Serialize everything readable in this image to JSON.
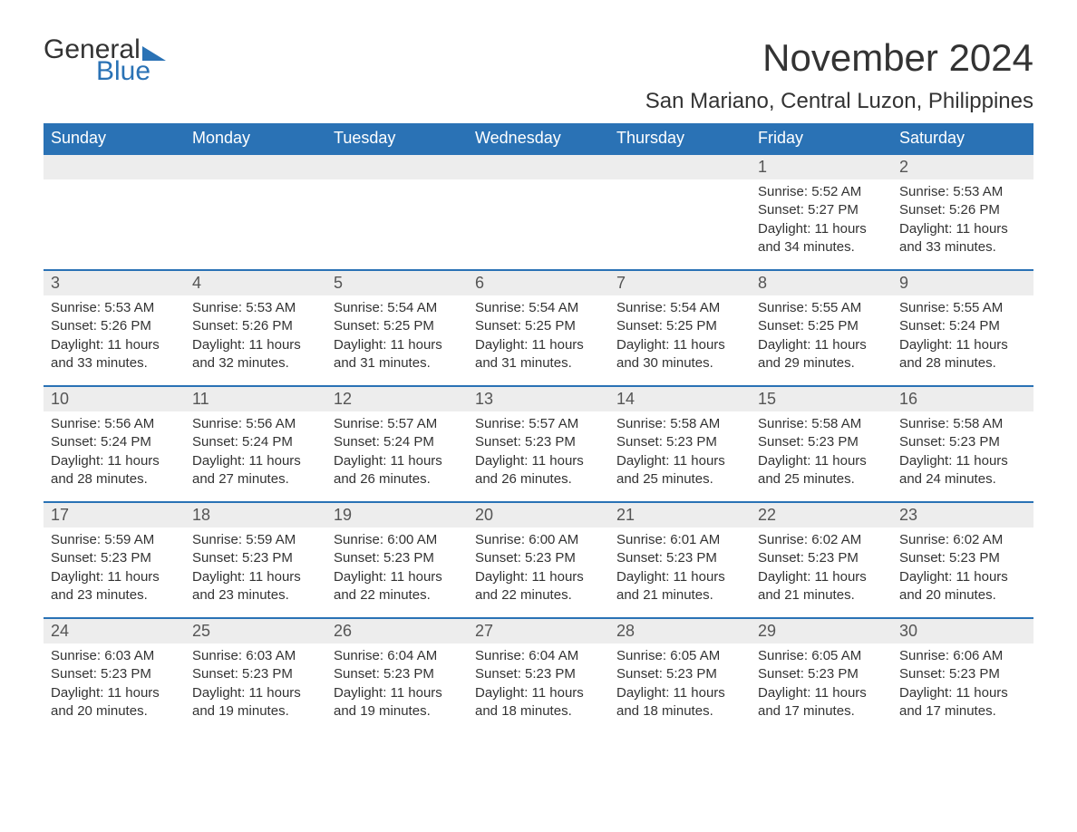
{
  "logo": {
    "text1": "General",
    "text2": "Blue"
  },
  "title": "November 2024",
  "location": "San Mariano, Central Luzon, Philippines",
  "colors": {
    "header_bg": "#2a72b5",
    "header_text": "#ffffff",
    "daynum_bg": "#ededed",
    "daynum_border": "#2a72b5",
    "body_bg": "#ffffff",
    "text": "#333333"
  },
  "typography": {
    "title_fontsize": 42,
    "location_fontsize": 24,
    "header_fontsize": 18,
    "daynum_fontsize": 18,
    "body_fontsize": 15
  },
  "weekdays": [
    "Sunday",
    "Monday",
    "Tuesday",
    "Wednesday",
    "Thursday",
    "Friday",
    "Saturday"
  ],
  "weeks": [
    [
      {
        "empty": true
      },
      {
        "empty": true
      },
      {
        "empty": true
      },
      {
        "empty": true
      },
      {
        "empty": true
      },
      {
        "day": "1",
        "sunrise": "Sunrise: 5:52 AM",
        "sunset": "Sunset: 5:27 PM",
        "daylight": "Daylight: 11 hours and 34 minutes."
      },
      {
        "day": "2",
        "sunrise": "Sunrise: 5:53 AM",
        "sunset": "Sunset: 5:26 PM",
        "daylight": "Daylight: 11 hours and 33 minutes."
      }
    ],
    [
      {
        "day": "3",
        "sunrise": "Sunrise: 5:53 AM",
        "sunset": "Sunset: 5:26 PM",
        "daylight": "Daylight: 11 hours and 33 minutes."
      },
      {
        "day": "4",
        "sunrise": "Sunrise: 5:53 AM",
        "sunset": "Sunset: 5:26 PM",
        "daylight": "Daylight: 11 hours and 32 minutes."
      },
      {
        "day": "5",
        "sunrise": "Sunrise: 5:54 AM",
        "sunset": "Sunset: 5:25 PM",
        "daylight": "Daylight: 11 hours and 31 minutes."
      },
      {
        "day": "6",
        "sunrise": "Sunrise: 5:54 AM",
        "sunset": "Sunset: 5:25 PM",
        "daylight": "Daylight: 11 hours and 31 minutes."
      },
      {
        "day": "7",
        "sunrise": "Sunrise: 5:54 AM",
        "sunset": "Sunset: 5:25 PM",
        "daylight": "Daylight: 11 hours and 30 minutes."
      },
      {
        "day": "8",
        "sunrise": "Sunrise: 5:55 AM",
        "sunset": "Sunset: 5:25 PM",
        "daylight": "Daylight: 11 hours and 29 minutes."
      },
      {
        "day": "9",
        "sunrise": "Sunrise: 5:55 AM",
        "sunset": "Sunset: 5:24 PM",
        "daylight": "Daylight: 11 hours and 28 minutes."
      }
    ],
    [
      {
        "day": "10",
        "sunrise": "Sunrise: 5:56 AM",
        "sunset": "Sunset: 5:24 PM",
        "daylight": "Daylight: 11 hours and 28 minutes."
      },
      {
        "day": "11",
        "sunrise": "Sunrise: 5:56 AM",
        "sunset": "Sunset: 5:24 PM",
        "daylight": "Daylight: 11 hours and 27 minutes."
      },
      {
        "day": "12",
        "sunrise": "Sunrise: 5:57 AM",
        "sunset": "Sunset: 5:24 PM",
        "daylight": "Daylight: 11 hours and 26 minutes."
      },
      {
        "day": "13",
        "sunrise": "Sunrise: 5:57 AM",
        "sunset": "Sunset: 5:23 PM",
        "daylight": "Daylight: 11 hours and 26 minutes."
      },
      {
        "day": "14",
        "sunrise": "Sunrise: 5:58 AM",
        "sunset": "Sunset: 5:23 PM",
        "daylight": "Daylight: 11 hours and 25 minutes."
      },
      {
        "day": "15",
        "sunrise": "Sunrise: 5:58 AM",
        "sunset": "Sunset: 5:23 PM",
        "daylight": "Daylight: 11 hours and 25 minutes."
      },
      {
        "day": "16",
        "sunrise": "Sunrise: 5:58 AM",
        "sunset": "Sunset: 5:23 PM",
        "daylight": "Daylight: 11 hours and 24 minutes."
      }
    ],
    [
      {
        "day": "17",
        "sunrise": "Sunrise: 5:59 AM",
        "sunset": "Sunset: 5:23 PM",
        "daylight": "Daylight: 11 hours and 23 minutes."
      },
      {
        "day": "18",
        "sunrise": "Sunrise: 5:59 AM",
        "sunset": "Sunset: 5:23 PM",
        "daylight": "Daylight: 11 hours and 23 minutes."
      },
      {
        "day": "19",
        "sunrise": "Sunrise: 6:00 AM",
        "sunset": "Sunset: 5:23 PM",
        "daylight": "Daylight: 11 hours and 22 minutes."
      },
      {
        "day": "20",
        "sunrise": "Sunrise: 6:00 AM",
        "sunset": "Sunset: 5:23 PM",
        "daylight": "Daylight: 11 hours and 22 minutes."
      },
      {
        "day": "21",
        "sunrise": "Sunrise: 6:01 AM",
        "sunset": "Sunset: 5:23 PM",
        "daylight": "Daylight: 11 hours and 21 minutes."
      },
      {
        "day": "22",
        "sunrise": "Sunrise: 6:02 AM",
        "sunset": "Sunset: 5:23 PM",
        "daylight": "Daylight: 11 hours and 21 minutes."
      },
      {
        "day": "23",
        "sunrise": "Sunrise: 6:02 AM",
        "sunset": "Sunset: 5:23 PM",
        "daylight": "Daylight: 11 hours and 20 minutes."
      }
    ],
    [
      {
        "day": "24",
        "sunrise": "Sunrise: 6:03 AM",
        "sunset": "Sunset: 5:23 PM",
        "daylight": "Daylight: 11 hours and 20 minutes."
      },
      {
        "day": "25",
        "sunrise": "Sunrise: 6:03 AM",
        "sunset": "Sunset: 5:23 PM",
        "daylight": "Daylight: 11 hours and 19 minutes."
      },
      {
        "day": "26",
        "sunrise": "Sunrise: 6:04 AM",
        "sunset": "Sunset: 5:23 PM",
        "daylight": "Daylight: 11 hours and 19 minutes."
      },
      {
        "day": "27",
        "sunrise": "Sunrise: 6:04 AM",
        "sunset": "Sunset: 5:23 PM",
        "daylight": "Daylight: 11 hours and 18 minutes."
      },
      {
        "day": "28",
        "sunrise": "Sunrise: 6:05 AM",
        "sunset": "Sunset: 5:23 PM",
        "daylight": "Daylight: 11 hours and 18 minutes."
      },
      {
        "day": "29",
        "sunrise": "Sunrise: 6:05 AM",
        "sunset": "Sunset: 5:23 PM",
        "daylight": "Daylight: 11 hours and 17 minutes."
      },
      {
        "day": "30",
        "sunrise": "Sunrise: 6:06 AM",
        "sunset": "Sunset: 5:23 PM",
        "daylight": "Daylight: 11 hours and 17 minutes."
      }
    ]
  ]
}
